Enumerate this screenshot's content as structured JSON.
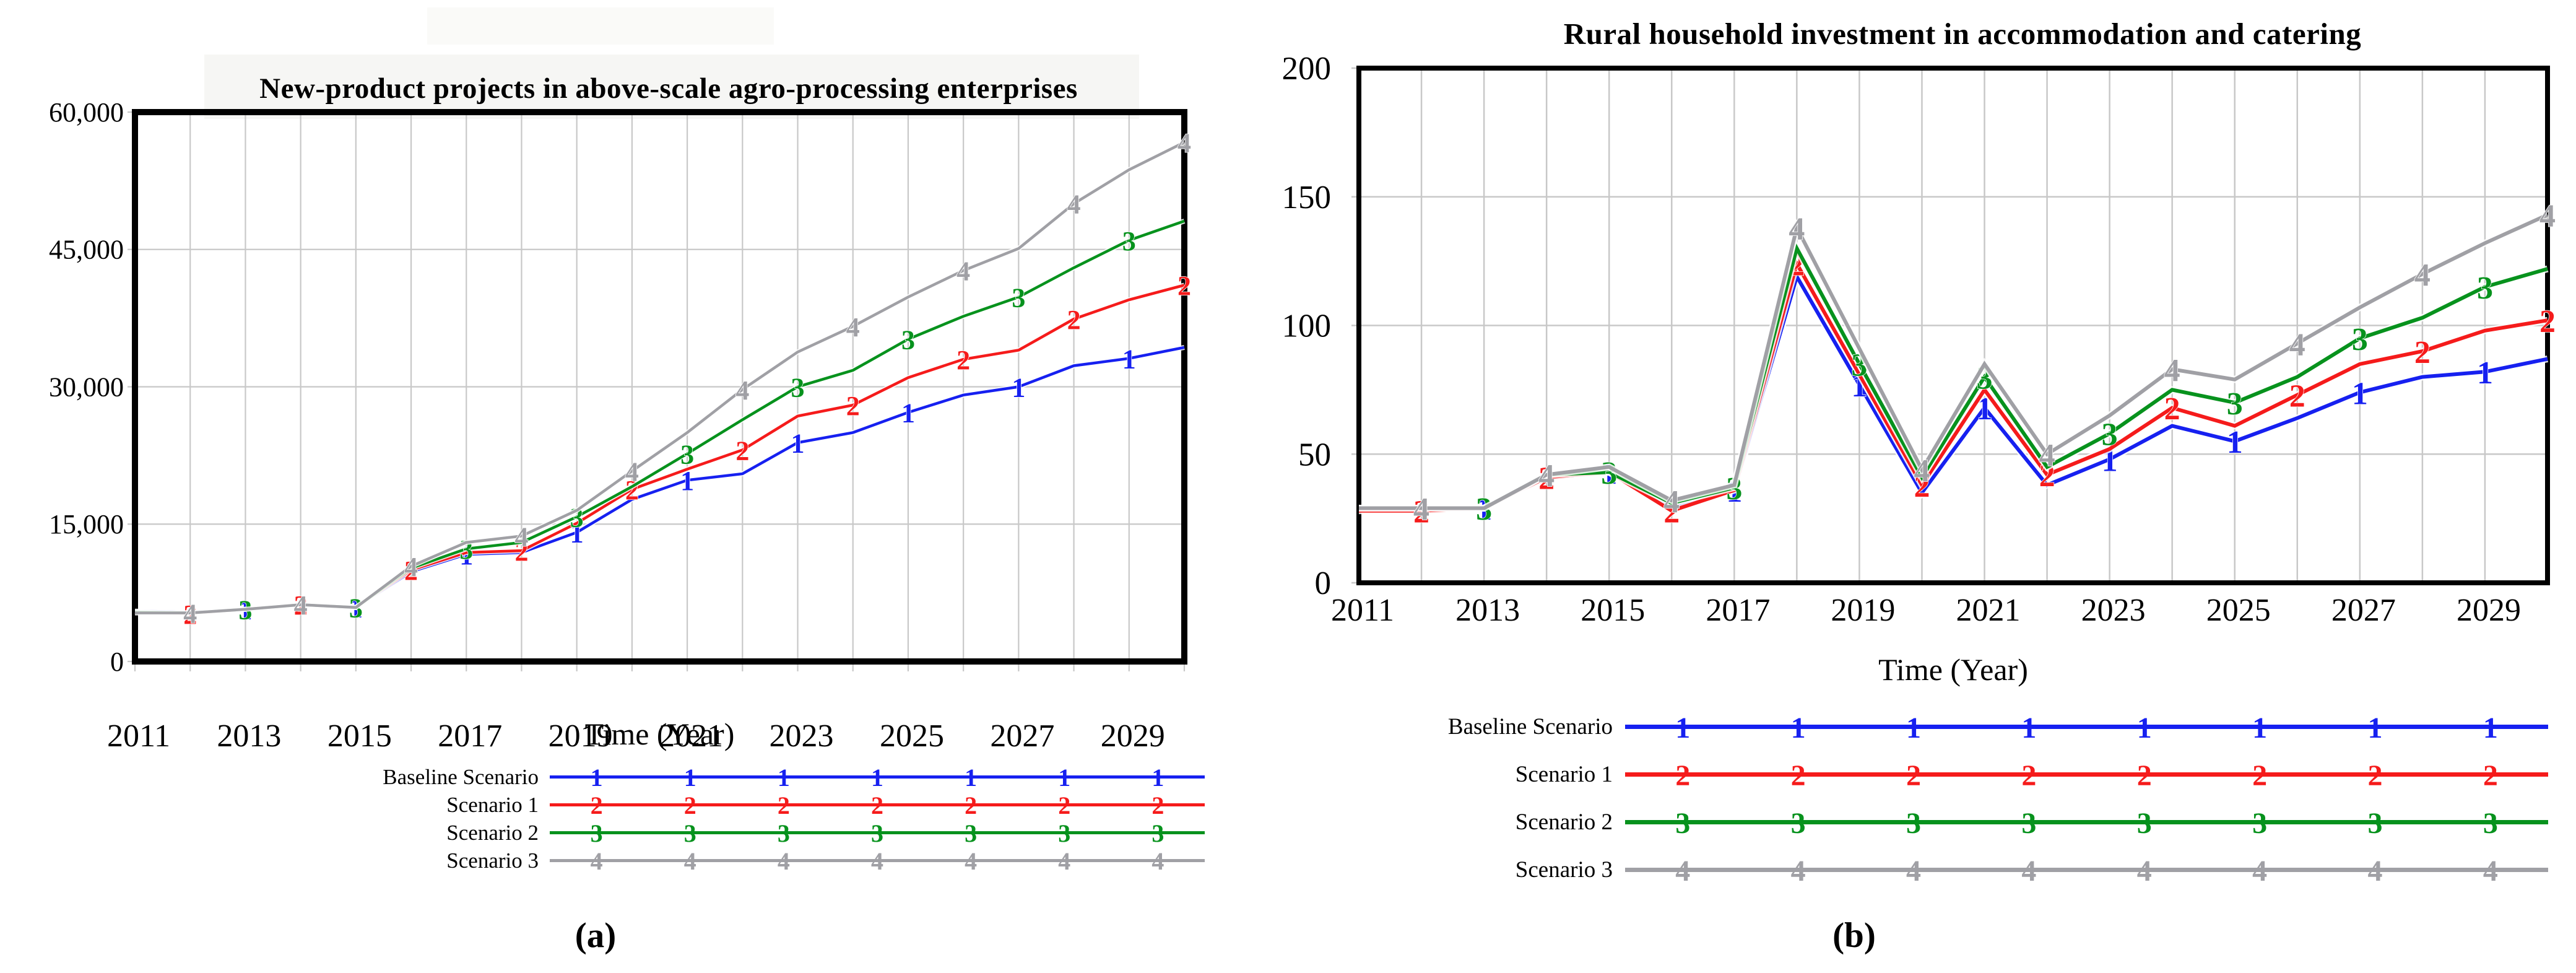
{
  "figure": {
    "panel_a_label": "(a)",
    "panel_b_label": "(b)",
    "legend": [
      "Baseline Scenario",
      "Scenario 1",
      "Scenario 2",
      "Scenario 3"
    ],
    "legend_marker_counts": [
      7,
      8
    ],
    "grid_color": "#c8c8c8",
    "frame_color": "#000000"
  },
  "chart_data": [
    {
      "id": "a",
      "type": "line",
      "title": "New-product projects in above-scale agro-processing enterprises",
      "xlabel": "Time (Year)",
      "legend_position": "bottom",
      "grid": true,
      "x": [
        2011,
        2012,
        2013,
        2014,
        2015,
        2016,
        2017,
        2018,
        2019,
        2020,
        2021,
        2022,
        2023,
        2024,
        2025,
        2026,
        2027,
        2028,
        2029,
        2030
      ],
      "xticks": [
        2011,
        2013,
        2015,
        2017,
        2019,
        2021,
        2023,
        2025,
        2027,
        2029
      ],
      "xlim": [
        2011,
        2030
      ],
      "ylim": [
        0,
        60000
      ],
      "yticks": [
        0,
        15000,
        30000,
        45000,
        60000
      ],
      "ytick_labels": [
        "0",
        "15,000",
        "30,000",
        "45,000",
        "60,000"
      ],
      "series": [
        {
          "name": "Baseline Scenario",
          "marker": "1",
          "color": "#1620f0",
          "values": [
            5500,
            5400,
            5700,
            6100,
            5900,
            9800,
            11700,
            11900,
            14100,
            17700,
            19800,
            20500,
            23900,
            25000,
            27200,
            29100,
            30000,
            32300,
            33100,
            34300
          ],
          "marker_years": [
            2013,
            2015,
            2017,
            2019,
            2021,
            2023,
            2025,
            2027,
            2029
          ]
        },
        {
          "name": "Scenario 1",
          "marker": "2",
          "color": "#f51b1b",
          "values": [
            5400,
            5200,
            5700,
            6200,
            5900,
            10000,
            11900,
            12100,
            15100,
            18800,
            21000,
            23100,
            26800,
            28000,
            31000,
            33000,
            34000,
            37400,
            39500,
            41100
          ],
          "marker_years": [
            2012,
            2014,
            2016,
            2018,
            2020,
            2022,
            2024,
            2026,
            2028,
            2030
          ]
        },
        {
          "name": "Scenario 2",
          "marker": "3",
          "color": "#07921d",
          "values": [
            5400,
            5300,
            5700,
            6200,
            5900,
            10200,
            12300,
            13000,
            15800,
            19100,
            22700,
            26400,
            30000,
            31800,
            35200,
            37700,
            39800,
            43000,
            46000,
            48100
          ],
          "marker_years": [
            2013,
            2015,
            2017,
            2019,
            2021,
            2023,
            2025,
            2027,
            2029
          ]
        },
        {
          "name": "Scenario 3",
          "marker": "4",
          "color": "#a0a0a5",
          "values": [
            5300,
            5300,
            5700,
            6200,
            5900,
            10400,
            13000,
            13700,
            16500,
            20800,
            25000,
            29700,
            33800,
            36600,
            39800,
            42700,
            45100,
            50000,
            53700,
            56700
          ],
          "marker_years": [
            2012,
            2014,
            2016,
            2018,
            2020,
            2022,
            2024,
            2026,
            2028,
            2030
          ]
        }
      ]
    },
    {
      "id": "b",
      "type": "line",
      "title": "Rural household investment in accommodation and catering",
      "xlabel": "Time (Year)",
      "legend_position": "bottom",
      "grid": true,
      "x": [
        2011,
        2012,
        2013,
        2014,
        2015,
        2016,
        2017,
        2018,
        2019,
        2020,
        2021,
        2022,
        2023,
        2024,
        2025,
        2026,
        2027,
        2028,
        2029,
        2030
      ],
      "xticks": [
        2011,
        2013,
        2015,
        2017,
        2019,
        2021,
        2023,
        2025,
        2027,
        2029
      ],
      "xlim": [
        2011,
        2030
      ],
      "ylim": [
        0,
        200
      ],
      "yticks": [
        0,
        50,
        100,
        150,
        200
      ],
      "ytick_labels": [
        "0",
        "50",
        "100",
        "150",
        "200"
      ],
      "series": [
        {
          "name": "Baseline Scenario",
          "marker": "1",
          "color": "#1620f0",
          "values": [
            29,
            29,
            29,
            41,
            43,
            29,
            36,
            119,
            77,
            35,
            68,
            38,
            48,
            61,
            55,
            64,
            74,
            80,
            82,
            87
          ],
          "marker_years": [
            2013,
            2015,
            2017,
            2019,
            2021,
            2023,
            2025,
            2027,
            2029
          ]
        },
        {
          "name": "Scenario 1",
          "marker": "2",
          "color": "#f51b1b",
          "values": [
            28,
            28,
            29,
            41,
            43,
            28,
            36,
            124,
            81,
            38,
            75,
            42,
            52,
            68,
            61,
            73,
            85,
            90,
            98,
            102
          ],
          "marker_years": [
            2012,
            2014,
            2016,
            2018,
            2020,
            2022,
            2024,
            2026,
            2028,
            2030
          ]
        },
        {
          "name": "Scenario 2",
          "marker": "3",
          "color": "#07921d",
          "values": [
            29,
            29,
            29,
            42,
            43,
            31,
            37,
            130,
            85,
            41,
            80,
            45,
            58,
            75,
            70,
            80,
            95,
            103,
            115,
            122
          ],
          "marker_years": [
            2013,
            2015,
            2017,
            2019,
            2021,
            2023,
            2025,
            2027,
            2029
          ]
        },
        {
          "name": "Scenario 3",
          "marker": "4",
          "color": "#a0a0a5",
          "values": [
            29,
            29,
            29,
            42,
            45,
            32,
            38,
            138,
            91,
            44,
            85,
            50,
            65,
            83,
            79,
            93,
            107,
            120,
            132,
            143
          ],
          "marker_years": [
            2012,
            2014,
            2016,
            2018,
            2020,
            2022,
            2024,
            2026,
            2028,
            2030
          ]
        }
      ]
    }
  ]
}
